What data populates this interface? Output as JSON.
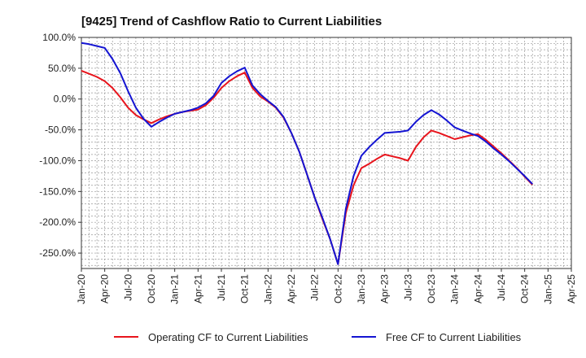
{
  "chart_data": {
    "type": "line",
    "title": "[9425]  Trend of Cashflow Ratio to Current Liabilities",
    "xlabel": "",
    "ylabel": "",
    "ylim": [
      -275,
      100
    ],
    "xlim": [
      "2020-01",
      "2025-04"
    ],
    "grid": true,
    "legend_position": "bottom",
    "y_ticks": [
      "100.0%",
      "50.0%",
      "0.0%",
      "-50.0%",
      "-100.0%",
      "-150.0%",
      "-200.0%",
      "-250.0%"
    ],
    "x_ticks": [
      "Jan-20",
      "Apr-20",
      "Jul-20",
      "Oct-20",
      "Jan-21",
      "Apr-21",
      "Jul-21",
      "Oct-21",
      "Jan-22",
      "Apr-22",
      "Jul-22",
      "Oct-22",
      "Jan-23",
      "Apr-23",
      "Jul-23",
      "Oct-23",
      "Jan-24",
      "Apr-24",
      "Jul-24",
      "Oct-24",
      "Jan-25",
      "Apr-25"
    ],
    "series": [
      {
        "name": "Operating CF to Current Liabilities",
        "color": "#e8141c",
        "points": [
          [
            "2020-01",
            46
          ],
          [
            "2020-02",
            41
          ],
          [
            "2020-03",
            36
          ],
          [
            "2020-04",
            29
          ],
          [
            "2020-05",
            18
          ],
          [
            "2020-06",
            3
          ],
          [
            "2020-07",
            -14
          ],
          [
            "2020-08",
            -26
          ],
          [
            "2020-09",
            -33
          ],
          [
            "2020-10",
            -39
          ],
          [
            "2020-11",
            -33
          ],
          [
            "2020-12",
            -28
          ],
          [
            "2021-01",
            -24
          ],
          [
            "2021-02",
            -21
          ],
          [
            "2021-03",
            -19
          ],
          [
            "2021-04",
            -17
          ],
          [
            "2021-05",
            -10
          ],
          [
            "2021-06",
            2
          ],
          [
            "2021-07",
            18
          ],
          [
            "2021-08",
            29
          ],
          [
            "2021-09",
            37
          ],
          [
            "2021-10",
            43
          ],
          [
            "2021-11",
            18
          ],
          [
            "2021-12",
            4
          ],
          [
            "2022-01",
            -4
          ],
          [
            "2022-02",
            -14
          ],
          [
            "2022-03",
            -30
          ],
          [
            "2022-04",
            -55
          ],
          [
            "2022-05",
            -85
          ],
          [
            "2022-06",
            -122
          ],
          [
            "2022-07",
            -160
          ],
          [
            "2022-08",
            -195
          ],
          [
            "2022-09",
            -228
          ],
          [
            "2022-10",
            -268
          ],
          [
            "2022-11",
            -185
          ],
          [
            "2022-12",
            -140
          ],
          [
            "2023-01",
            -112
          ],
          [
            "2023-02",
            -105
          ],
          [
            "2023-03",
            -97
          ],
          [
            "2023-04",
            -90
          ],
          [
            "2023-05",
            -93
          ],
          [
            "2023-06",
            -96
          ],
          [
            "2023-07",
            -100
          ],
          [
            "2023-08",
            -78
          ],
          [
            "2023-09",
            -62
          ],
          [
            "2023-10",
            -51
          ],
          [
            "2023-11",
            -55
          ],
          [
            "2023-12",
            -60
          ],
          [
            "2024-01",
            -65
          ],
          [
            "2024-02",
            -62
          ],
          [
            "2024-03",
            -59
          ],
          [
            "2024-04",
            -57
          ],
          [
            "2024-05",
            -66
          ],
          [
            "2024-06",
            -77
          ],
          [
            "2024-07",
            -88
          ],
          [
            "2024-08",
            -100
          ],
          [
            "2024-09",
            -112
          ],
          [
            "2024-10",
            -126
          ],
          [
            "2024-11",
            -139
          ]
        ]
      },
      {
        "name": "Free CF to Current Liabilities",
        "color": "#1414d2",
        "points": [
          [
            "2020-01",
            91
          ],
          [
            "2020-02",
            89
          ],
          [
            "2020-03",
            86
          ],
          [
            "2020-04",
            83
          ],
          [
            "2020-05",
            65
          ],
          [
            "2020-06",
            42
          ],
          [
            "2020-07",
            13
          ],
          [
            "2020-08",
            -14
          ],
          [
            "2020-09",
            -32
          ],
          [
            "2020-10",
            -45
          ],
          [
            "2020-11",
            -37
          ],
          [
            "2020-12",
            -30
          ],
          [
            "2021-01",
            -24
          ],
          [
            "2021-02",
            -21
          ],
          [
            "2021-03",
            -18
          ],
          [
            "2021-04",
            -14
          ],
          [
            "2021-05",
            -7
          ],
          [
            "2021-06",
            5
          ],
          [
            "2021-07",
            26
          ],
          [
            "2021-08",
            37
          ],
          [
            "2021-09",
            45
          ],
          [
            "2021-10",
            51
          ],
          [
            "2021-11",
            22
          ],
          [
            "2021-12",
            8
          ],
          [
            "2022-01",
            -3
          ],
          [
            "2022-02",
            -13
          ],
          [
            "2022-03",
            -29
          ],
          [
            "2022-04",
            -55
          ],
          [
            "2022-05",
            -85
          ],
          [
            "2022-06",
            -122
          ],
          [
            "2022-07",
            -160
          ],
          [
            "2022-08",
            -193
          ],
          [
            "2022-09",
            -228
          ],
          [
            "2022-10",
            -268
          ],
          [
            "2022-11",
            -178
          ],
          [
            "2022-12",
            -125
          ],
          [
            "2023-01",
            -92
          ],
          [
            "2023-02",
            -78
          ],
          [
            "2023-03",
            -66
          ],
          [
            "2023-04",
            -55
          ],
          [
            "2023-05",
            -54
          ],
          [
            "2023-06",
            -53
          ],
          [
            "2023-07",
            -51
          ],
          [
            "2023-08",
            -37
          ],
          [
            "2023-09",
            -26
          ],
          [
            "2023-10",
            -18
          ],
          [
            "2023-11",
            -25
          ],
          [
            "2023-12",
            -35
          ],
          [
            "2024-01",
            -46
          ],
          [
            "2024-02",
            -51
          ],
          [
            "2024-03",
            -56
          ],
          [
            "2024-04",
            -60
          ],
          [
            "2024-05",
            -69
          ],
          [
            "2024-06",
            -80
          ],
          [
            "2024-07",
            -90
          ],
          [
            "2024-08",
            -101
          ],
          [
            "2024-09",
            -113
          ],
          [
            "2024-10",
            -125
          ],
          [
            "2024-11",
            -138
          ]
        ]
      }
    ]
  }
}
